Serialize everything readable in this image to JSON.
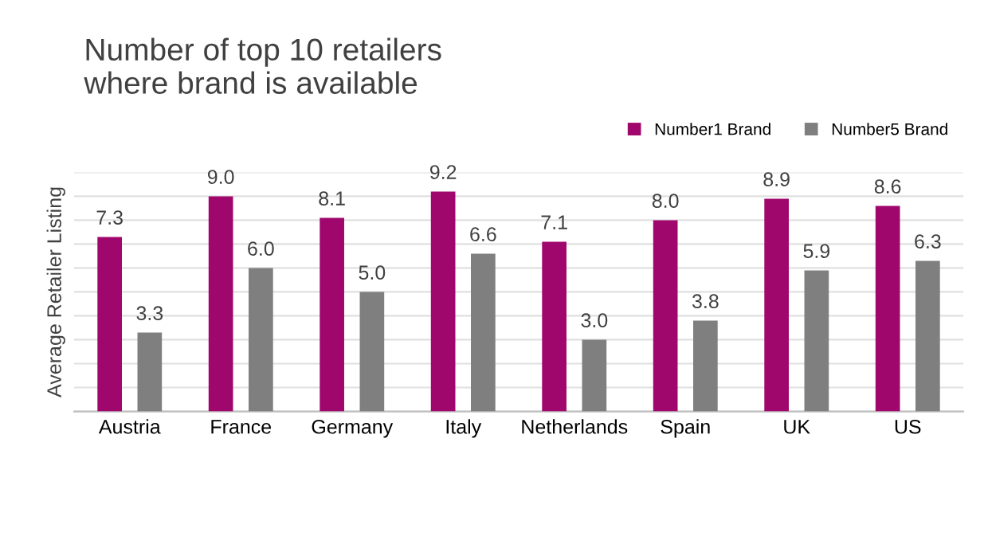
{
  "chart_data": {
    "type": "bar",
    "title": "Number of top 10 retailers\nwhere brand is available",
    "ylabel": "Average Retailer Listing",
    "categories": [
      "Austria",
      "France",
      "Germany",
      "Italy",
      "Netherlands",
      "Spain",
      "UK",
      "US"
    ],
    "series": [
      {
        "name": "Number1 Brand",
        "color": "#a0076d",
        "values": [
          7.3,
          9.0,
          8.1,
          9.2,
          7.1,
          8.0,
          8.9,
          8.6
        ],
        "value_labels": [
          "7.3",
          "9.0",
          "8.1",
          "9.2",
          "7.1",
          "8.0",
          "8.9",
          "8.6"
        ]
      },
      {
        "name": "Number5 Brand",
        "color": "#7f7f7f",
        "values": [
          3.3,
          6.0,
          5.0,
          6.6,
          3.0,
          3.8,
          5.9,
          6.3
        ],
        "value_labels": [
          "3.3",
          "6.0",
          "5.0",
          "6.6",
          "3.0",
          "3.8",
          "5.9",
          "6.3"
        ]
      }
    ],
    "ylim": [
      0,
      10
    ],
    "yticks": [
      {
        "value": 0,
        "label": null
      },
      {
        "value": 1,
        "label": null
      },
      {
        "value": 2,
        "label": null
      },
      {
        "value": 3,
        "label": null
      },
      {
        "value": 4,
        "label": null
      },
      {
        "value": 5,
        "label": null
      },
      {
        "value": 6,
        "label": null
      },
      {
        "value": 7,
        "label": null
      },
      {
        "value": 8,
        "label": null
      },
      {
        "value": 9,
        "label": null
      },
      {
        "value": 10,
        "label": null
      }
    ],
    "tick_labels": "x",
    "grid": "y",
    "legend": "top right"
  }
}
